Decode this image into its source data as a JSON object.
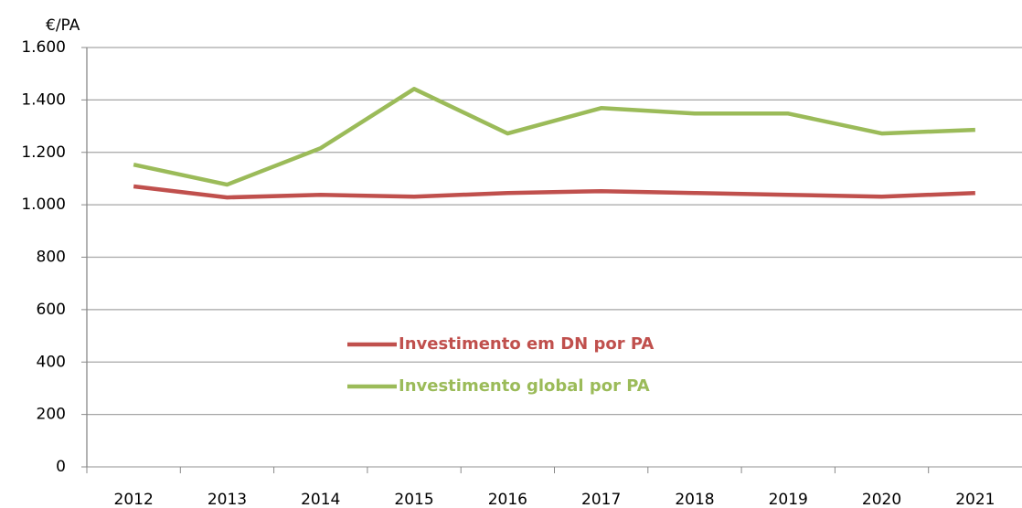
{
  "chart_data": {
    "type": "line",
    "y_axis_label": "€/PA",
    "categories": [
      "2012",
      "2013",
      "2014",
      "2015",
      "2016",
      "2017",
      "2018",
      "2019",
      "2020",
      "2021"
    ],
    "series": [
      {
        "name": "Investimento em DN por PA",
        "color": "#c0504d",
        "values": [
          1070,
          1028,
          1038,
          1031,
          1045,
          1052,
          1045,
          1038,
          1031,
          1045
        ]
      },
      {
        "name": "Investimento global por PA",
        "color": "#9bbb59",
        "values": [
          1153,
          1077,
          1216,
          1442,
          1272,
          1369,
          1348,
          1348,
          1272,
          1286
        ]
      }
    ],
    "ylim": [
      0,
      1600
    ],
    "yticks": [
      0,
      200,
      400,
      600,
      800,
      {
        "value": 1000,
        "label": "1.000"
      },
      {
        "value": 1200,
        "label": "1.200"
      },
      {
        "value": 1400,
        "label": "1.400"
      },
      {
        "value": 1600,
        "label": "1.600"
      }
    ],
    "grid": true
  }
}
